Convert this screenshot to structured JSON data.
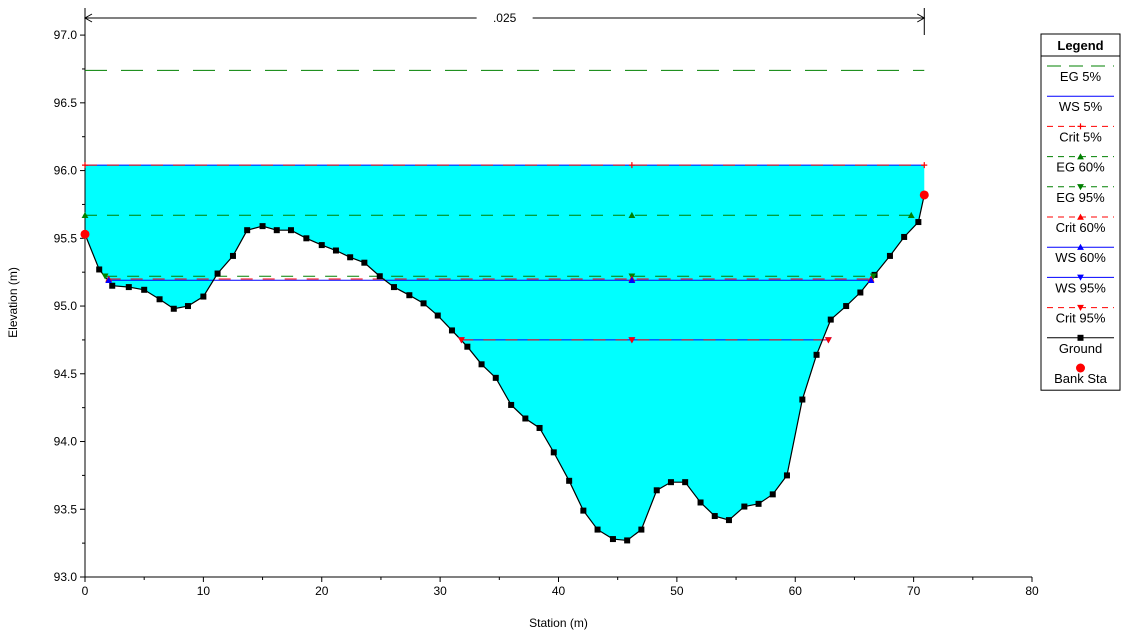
{
  "chart_data": {
    "type": "line",
    "title": "",
    "xlabel": "Station (m)",
    "ylabel": "Elevation (m)",
    "xlim": [
      0,
      80
    ],
    "ylim": [
      93.0,
      97.2
    ],
    "x_ticks": [
      0,
      10,
      20,
      30,
      40,
      50,
      60,
      70,
      80
    ],
    "y_ticks": [
      93.0,
      93.5,
      94.0,
      94.5,
      95.0,
      95.5,
      96.0,
      96.5,
      97.0
    ],
    "x_tick_labels": [
      "0",
      "10",
      "20",
      "30",
      "40",
      "50",
      "60",
      "70",
      "80"
    ],
    "y_tick_labels": [
      "93.0",
      "93.5",
      "94.0",
      "94.5",
      "95.0",
      "95.5",
      "96.0",
      "96.5",
      "97.0"
    ],
    "grid": false,
    "legend_placement": "right",
    "mannings": {
      "label": ".025",
      "x_start": 0,
      "x_end": 70.9
    },
    "ground": {
      "name": "Ground",
      "color": "#000000",
      "x": [
        0,
        1.2,
        2.3,
        3.7,
        5.0,
        6.3,
        7.5,
        8.7,
        10.0,
        11.2,
        12.5,
        13.7,
        15.0,
        16.2,
        17.4,
        18.7,
        20.0,
        21.2,
        22.4,
        23.6,
        24.9,
        26.1,
        27.4,
        28.6,
        29.8,
        31.0,
        32.3,
        33.5,
        34.7,
        36.0,
        37.2,
        38.4,
        39.6,
        40.9,
        42.1,
        43.3,
        44.6,
        45.8,
        47.0,
        48.3,
        49.5,
        50.7,
        52.0,
        53.2,
        54.4,
        55.7,
        56.9,
        58.1,
        59.3,
        60.6,
        61.8,
        63.0,
        64.3,
        65.5,
        66.7,
        68.0,
        69.2,
        70.4,
        70.9
      ],
      "y": [
        95.53,
        95.27,
        95.15,
        95.14,
        95.12,
        95.05,
        94.98,
        95.0,
        95.07,
        95.24,
        95.37,
        95.56,
        95.59,
        95.56,
        95.56,
        95.5,
        95.45,
        95.41,
        95.36,
        95.32,
        95.22,
        95.14,
        95.08,
        95.02,
        94.93,
        94.82,
        94.7,
        94.57,
        94.47,
        94.27,
        94.17,
        94.1,
        93.92,
        93.71,
        93.49,
        93.35,
        93.28,
        93.27,
        93.35,
        93.64,
        93.7,
        93.7,
        93.55,
        93.45,
        93.42,
        93.52,
        93.54,
        93.61,
        93.75,
        94.31,
        94.64,
        94.9,
        95.0,
        95.1,
        95.23,
        95.37,
        95.51,
        95.62,
        95.82
      ]
    },
    "bank_stations": {
      "name": "Bank Sta",
      "color": "#ff0000",
      "x": [
        0,
        70.9
      ],
      "y": [
        95.53,
        95.82
      ]
    },
    "series": [
      {
        "name": "EG 5%",
        "color": "#008000",
        "style": "long-dash",
        "marker": "none",
        "y": 96.74,
        "x_range": [
          0,
          70.9
        ]
      },
      {
        "name": "WS 5%",
        "color": "#0000ff",
        "style": "solid",
        "marker": "none",
        "y": 96.04,
        "x_range": [
          0,
          70.9
        ],
        "fill": "#00ffff"
      },
      {
        "name": "Crit 5%",
        "color": "#ff0000",
        "style": "dash",
        "marker": "plus",
        "y": 96.04,
        "x_range": [
          0,
          70.9
        ]
      },
      {
        "name": "EG 60%",
        "color": "#008000",
        "style": "dash",
        "marker": "triangle-up",
        "y": 95.67,
        "x_range": [
          0,
          69.8
        ]
      },
      {
        "name": "EG 95%",
        "color": "#008000",
        "style": "dash",
        "marker": "triangle-down",
        "y": 95.22,
        "x_range": [
          1.7,
          66.6
        ]
      },
      {
        "name": "Crit 60%",
        "color": "#ff0000",
        "style": "dash",
        "marker": "triangle-up",
        "y": 95.2,
        "x_range": [
          2.0,
          66.4
        ]
      },
      {
        "name": "WS 60%",
        "color": "#0000ff",
        "style": "solid",
        "marker": "triangle-up",
        "y": 95.19,
        "x_range": [
          2.0,
          66.4
        ]
      },
      {
        "name": "WS 95%",
        "color": "#0000ff",
        "style": "solid",
        "marker": "triangle-down",
        "y": 94.75,
        "x_range": [
          31.8,
          62.8
        ]
      },
      {
        "name": "Crit 95%",
        "color": "#ff0000",
        "style": "dash",
        "marker": "triangle-down",
        "y": 94.75,
        "x_range": [
          31.8,
          62.8
        ]
      }
    ],
    "legend": {
      "title": "Legend",
      "entries": [
        {
          "name": "EG 5%",
          "color": "#008000",
          "style": "long-dash",
          "marker": "none"
        },
        {
          "name": "WS 5%",
          "color": "#0000ff",
          "style": "solid",
          "marker": "none"
        },
        {
          "name": "Crit 5%",
          "color": "#ff0000",
          "style": "dash",
          "marker": "plus"
        },
        {
          "name": "EG 60%",
          "color": "#008000",
          "style": "dash",
          "marker": "triangle-up"
        },
        {
          "name": "EG 95%",
          "color": "#008000",
          "style": "dash",
          "marker": "triangle-down"
        },
        {
          "name": "Crit 60%",
          "color": "#ff0000",
          "style": "dash",
          "marker": "triangle-up"
        },
        {
          "name": "WS 60%",
          "color": "#0000ff",
          "style": "solid",
          "marker": "triangle-up"
        },
        {
          "name": "WS 95%",
          "color": "#0000ff",
          "style": "solid",
          "marker": "triangle-down"
        },
        {
          "name": "Crit 95%",
          "color": "#ff0000",
          "style": "dash",
          "marker": "triangle-down"
        },
        {
          "name": "Ground",
          "color": "#000000",
          "style": "solid",
          "marker": "square"
        },
        {
          "name": "Bank Sta",
          "color": "#ff0000",
          "style": "none",
          "marker": "circle"
        }
      ]
    }
  }
}
